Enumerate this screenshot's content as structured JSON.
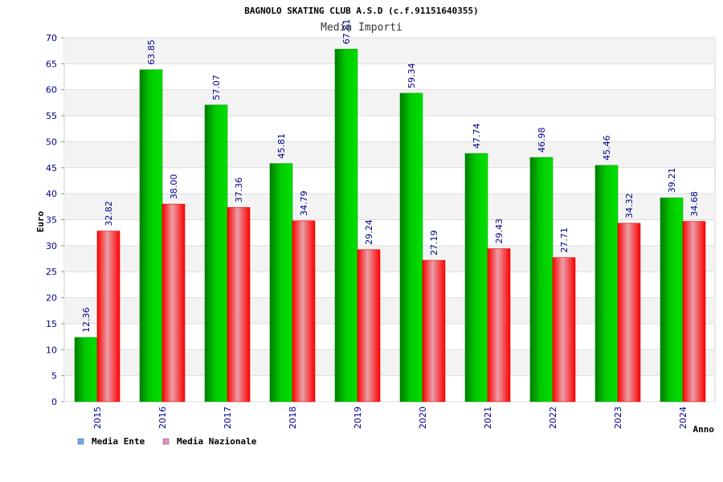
{
  "chart_data": {
    "type": "bar",
    "title": "BAGNOLO SKATING CLUB A.S.D (c.f.91151640355)",
    "subtitle": "Media Importi",
    "xlabel": "Anno",
    "ylabel": "Euro",
    "ylim": [
      0,
      70
    ],
    "yticks": [
      0,
      5,
      10,
      15,
      20,
      25,
      30,
      35,
      40,
      45,
      50,
      55,
      60,
      65,
      70
    ],
    "grid": true,
    "legend_position": "bottom-left",
    "categories": [
      "2015",
      "2016",
      "2017",
      "2018",
      "2019",
      "2020",
      "2021",
      "2022",
      "2023",
      "2024"
    ],
    "series": [
      {
        "name": "Media Ente",
        "legend_color": "#6fa8ff",
        "bar_color": "#00b000",
        "values": [
          12.36,
          63.85,
          57.07,
          45.81,
          67.81,
          59.34,
          47.74,
          46.98,
          45.46,
          39.21
        ],
        "labels": [
          "12.36",
          "63.85",
          "57.07",
          "45.81",
          "67.81",
          "59.34",
          "47.74",
          "46.98",
          "45.46",
          "39.21"
        ]
      },
      {
        "name": "Media Nazionale",
        "legend_color": "#e58fc8",
        "bar_color": "#ff1a1a",
        "values": [
          32.82,
          38.0,
          37.36,
          34.79,
          29.24,
          27.19,
          29.43,
          27.71,
          34.32,
          34.68
        ],
        "labels": [
          "32.82",
          "38.00",
          "37.36",
          "34.79",
          "29.24",
          "27.19",
          "29.43",
          "27.71",
          "34.32",
          "34.68"
        ]
      }
    ]
  }
}
